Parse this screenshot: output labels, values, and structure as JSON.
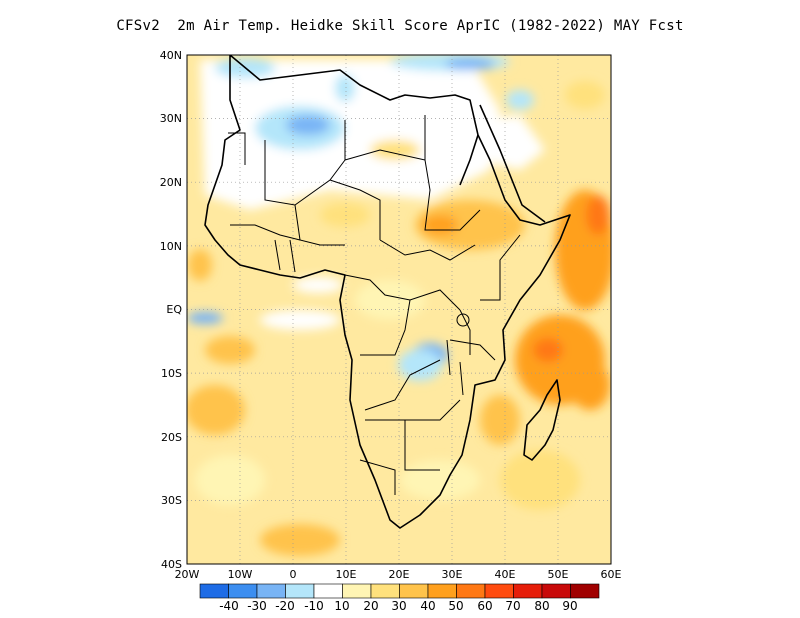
{
  "title": "CFSv2  2m Air Temp. Heidke Skill Score AprIC (1982-2022) MAY Fcst",
  "lat_labels": [
    "40N",
    "30N",
    "20N",
    "10N",
    "EQ",
    "10S",
    "20S",
    "30S",
    "40S"
  ],
  "lon_labels": [
    "20W",
    "10W",
    "0",
    "10E",
    "20E",
    "30E",
    "40E",
    "50E",
    "60E"
  ],
  "legend": {
    "labels": [
      "-40",
      "-30",
      "-20",
      "-10",
      "10",
      "20",
      "30",
      "40",
      "50",
      "60",
      "70",
      "80",
      "90"
    ],
    "colors": [
      "#1e6ce6",
      "#3c8ef0",
      "#78b4f5",
      "#b4e6fa",
      "#ffffff",
      "#fff5b4",
      "#ffe17d",
      "#ffc34b",
      "#ffa01e",
      "#ff7814",
      "#ff4b0f",
      "#e61e0a",
      "#c80a0a",
      "#a00000"
    ]
  }
}
